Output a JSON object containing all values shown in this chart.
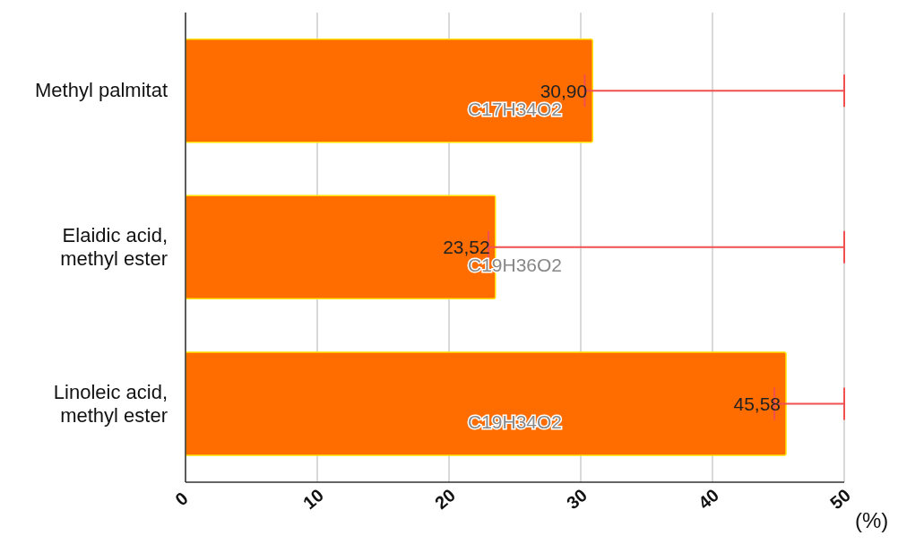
{
  "chart_data": {
    "type": "bar",
    "orientation": "horizontal",
    "xlabel": "(%)",
    "categories": [
      "Methyl palmitat",
      "Elaidic acid, methyl ester",
      "Linoleic acid, methyl ester"
    ],
    "values": [
      30.9,
      23.52,
      45.58
    ],
    "value_labels": [
      "30,90",
      "23,52",
      "45,58"
    ],
    "errors": [
      [
        30.3,
        50
      ],
      [
        23.0,
        50
      ],
      [
        44.7,
        50
      ]
    ],
    "color": "#ff6d00",
    "xlim": [
      0,
      50
    ],
    "xticks": [
      0,
      10,
      20,
      30,
      40,
      50
    ],
    "grid": "x",
    "annotations": [
      "C17H34O2",
      "C19H36O2",
      "C19H34O2"
    ]
  }
}
